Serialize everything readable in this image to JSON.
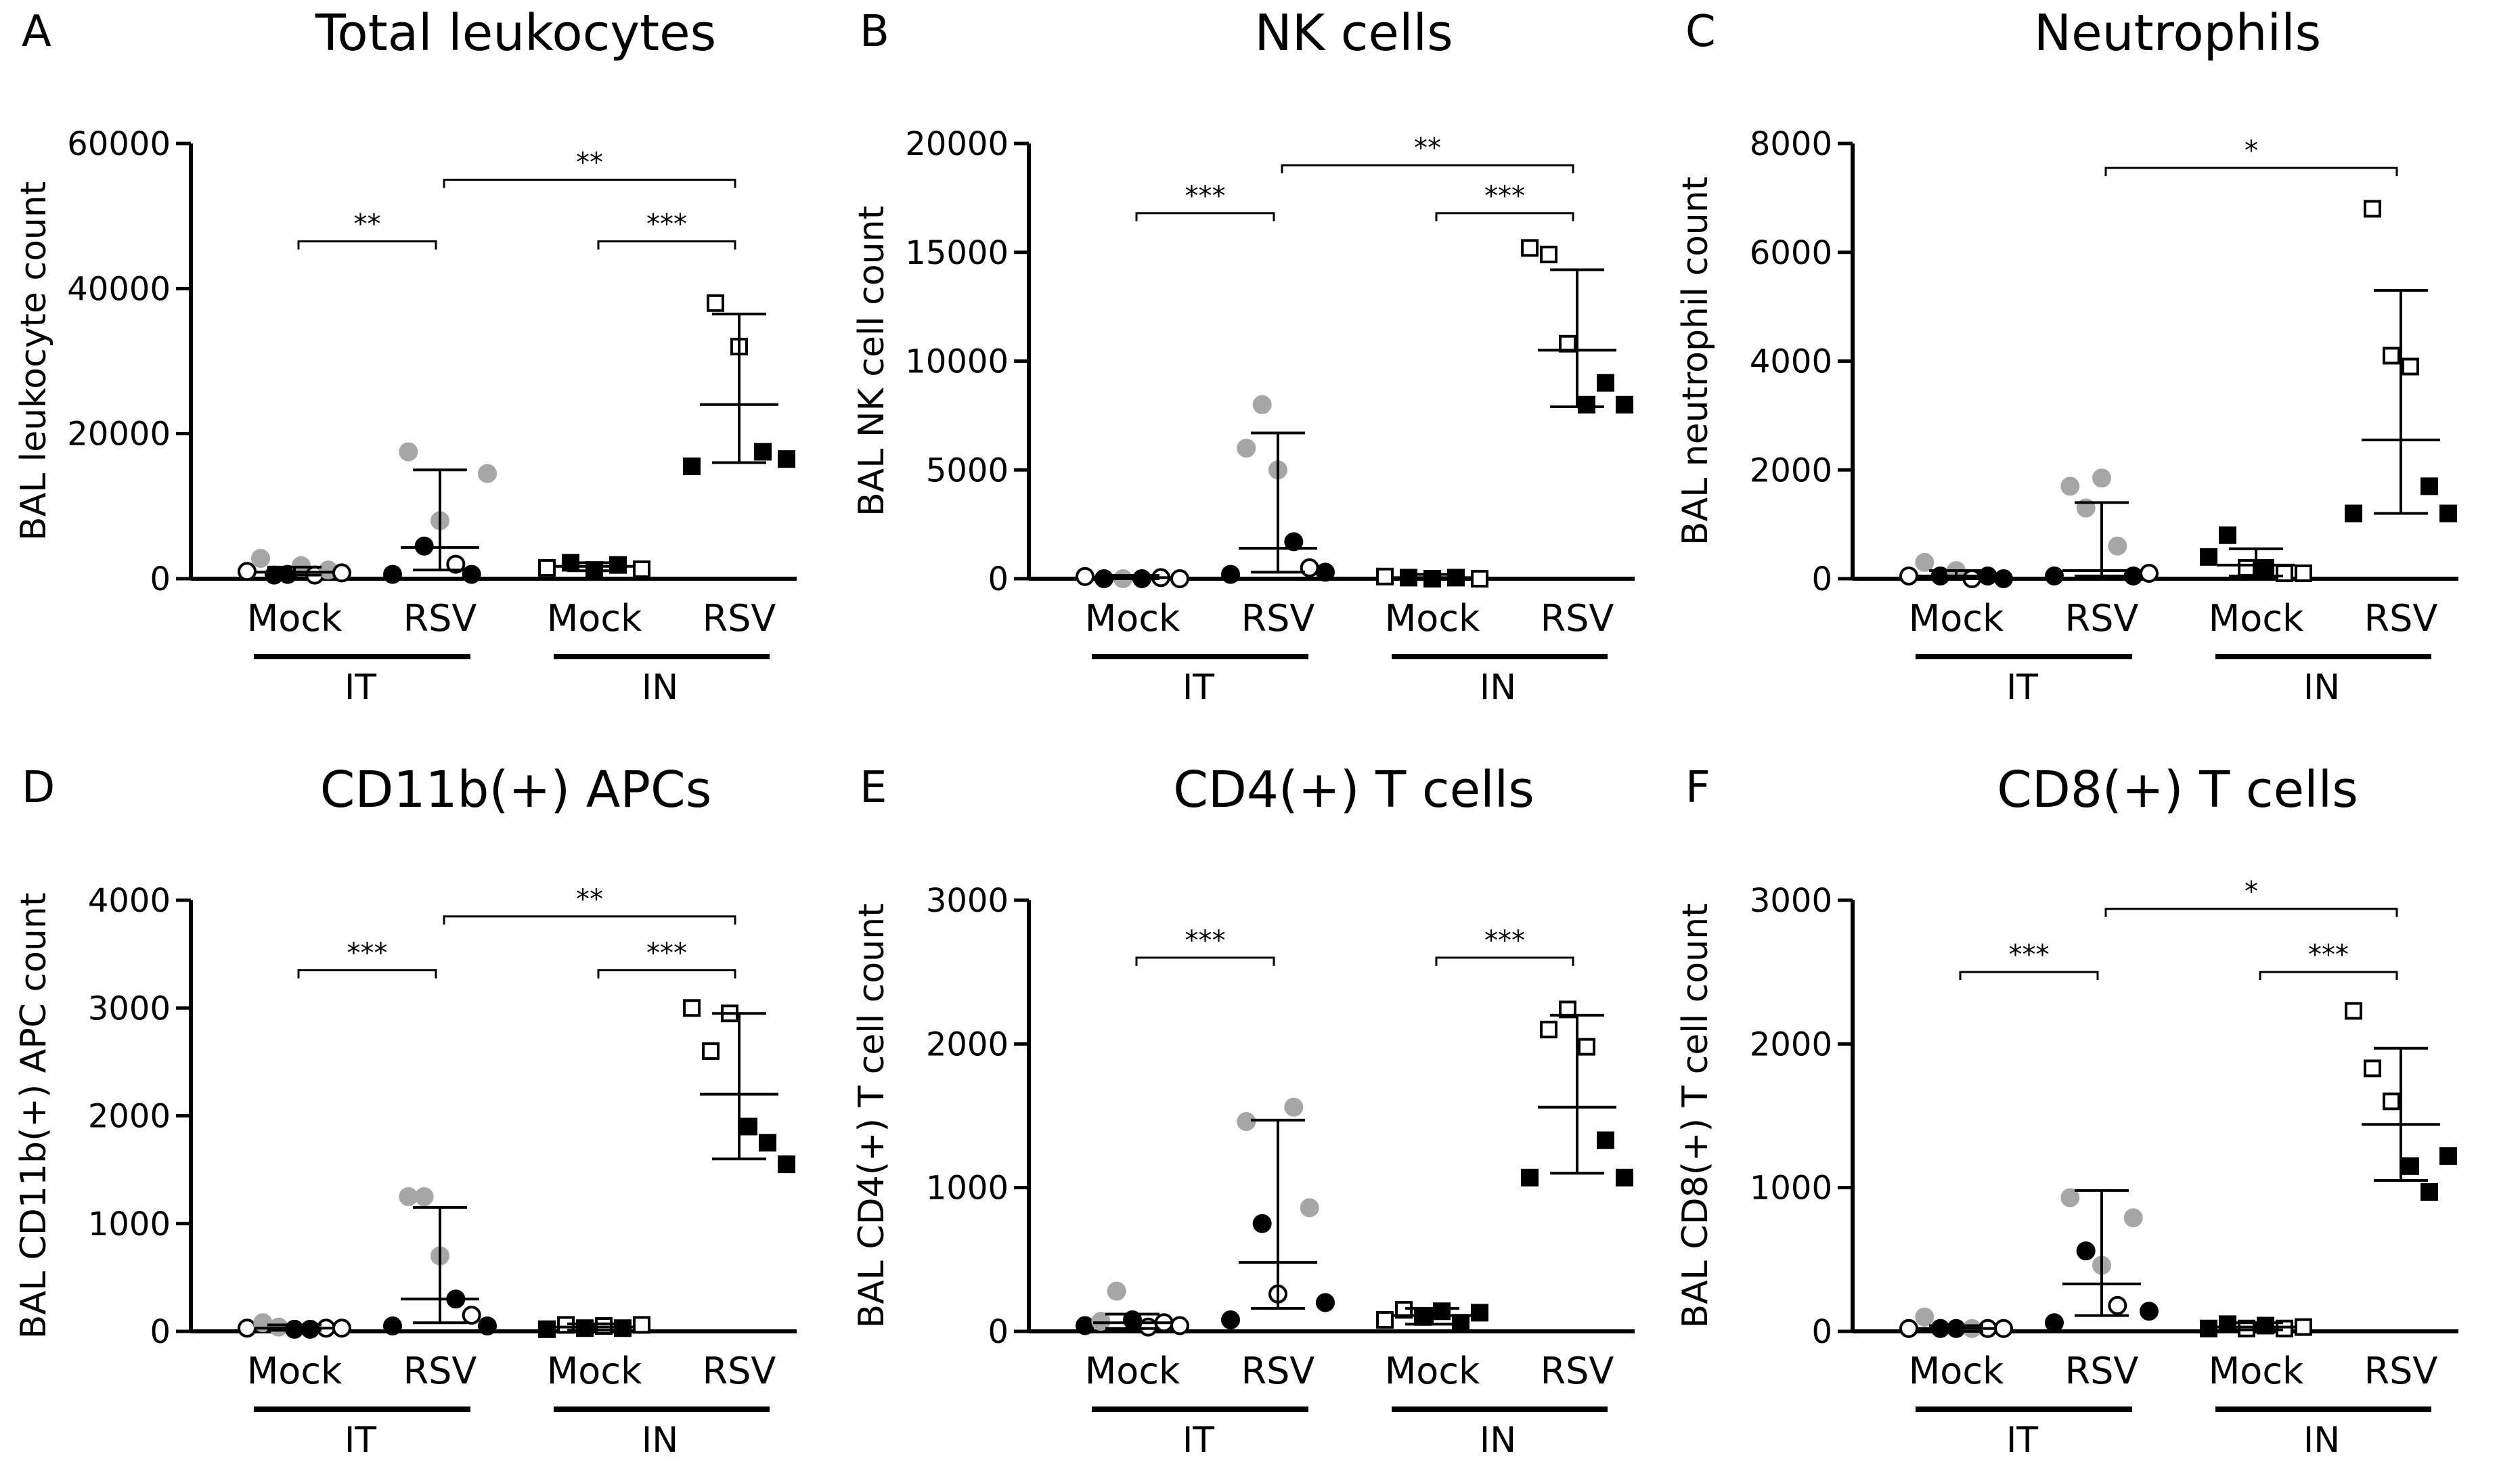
{
  "figure": {
    "x_categories": [
      "Mock",
      "RSV",
      "Mock",
      "RSV"
    ],
    "groups": [
      "IT",
      "IN"
    ]
  },
  "chart_data": [
    {
      "type": "scatter",
      "panel_label": "A",
      "title": "Total leukocytes",
      "ylabel": "BAL leukocyte count",
      "ylim": [
        0,
        60000
      ],
      "yticks": [
        "0",
        "20000",
        "40000",
        "60000"
      ],
      "groups": [
        {
          "name": "IT Mock",
          "points": [
            {
              "v": 1000,
              "s": "o"
            },
            {
              "v": 2800,
              "s": "g"
            },
            {
              "v": 500,
              "s": "f"
            },
            {
              "v": 600,
              "s": "f"
            },
            {
              "v": 1800,
              "s": "g"
            },
            {
              "v": 500,
              "s": "o"
            },
            {
              "v": 1200,
              "s": "g"
            },
            {
              "v": 800,
              "s": "o"
            }
          ],
          "median": 900,
          "lo": 500,
          "hi": 1600
        },
        {
          "name": "IT RSV",
          "points": [
            {
              "v": 600,
              "s": "f"
            },
            {
              "v": 17500,
              "s": "g"
            },
            {
              "v": 4500,
              "s": "f"
            },
            {
              "v": 8000,
              "s": "g"
            },
            {
              "v": 2000,
              "s": "o"
            },
            {
              "v": 600,
              "s": "f"
            },
            {
              "v": 14500,
              "s": "g"
            }
          ],
          "median": 4300,
          "lo": 1200,
          "hi": 15000
        },
        {
          "name": "IN Mock",
          "points": [
            {
              "v": 1500,
              "s": "os"
            },
            {
              "v": 2200,
              "s": "fs"
            },
            {
              "v": 1200,
              "s": "fs"
            },
            {
              "v": 1900,
              "s": "fs"
            },
            {
              "v": 1300,
              "s": "os"
            }
          ],
          "median": 1700,
          "lo": 1100,
          "hi": 2200
        },
        {
          "name": "IN RSV",
          "points": [
            {
              "v": 15500,
              "s": "fs"
            },
            {
              "v": 38000,
              "s": "os"
            },
            {
              "v": 32000,
              "s": "os"
            },
            {
              "v": 17500,
              "s": "fs"
            },
            {
              "v": 16500,
              "s": "fs"
            }
          ],
          "median": 24000,
          "lo": 16000,
          "hi": 36500
        }
      ],
      "significance": [
        {
          "from": 0,
          "to": 1,
          "label": "**",
          "y": 46500
        },
        {
          "from": 2,
          "to": 3,
          "label": "***",
          "y": 46500
        },
        {
          "from": 1,
          "to": 3,
          "label": "**",
          "y": 55000
        }
      ]
    },
    {
      "type": "scatter",
      "panel_label": "B",
      "title": "NK cells",
      "ylabel": "BAL NK cell count",
      "ylim": [
        0,
        20000
      ],
      "yticks": [
        "0",
        "5000",
        "10000",
        "15000",
        "20000"
      ],
      "groups": [
        {
          "name": "IT Mock",
          "points": [
            {
              "v": 100,
              "s": "o"
            },
            {
              "v": 0,
              "s": "f"
            },
            {
              "v": 0,
              "s": "g"
            },
            {
              "v": 0,
              "s": "f"
            },
            {
              "v": 50,
              "s": "o"
            },
            {
              "v": 0,
              "s": "o"
            }
          ],
          "median": 50,
          "lo": 0,
          "hi": 150
        },
        {
          "name": "IT RSV",
          "points": [
            {
              "v": 200,
              "s": "f"
            },
            {
              "v": 6000,
              "s": "g"
            },
            {
              "v": 8000,
              "s": "g"
            },
            {
              "v": 5000,
              "s": "g"
            },
            {
              "v": 1700,
              "s": "f"
            },
            {
              "v": 500,
              "s": "o"
            },
            {
              "v": 300,
              "s": "f"
            }
          ],
          "median": 1400,
          "lo": 300,
          "hi": 6700
        },
        {
          "name": "IN Mock",
          "points": [
            {
              "v": 100,
              "s": "os"
            },
            {
              "v": 50,
              "s": "fs"
            },
            {
              "v": 0,
              "s": "fs"
            },
            {
              "v": 50,
              "s": "fs"
            },
            {
              "v": 0,
              "s": "os"
            }
          ],
          "median": 50,
          "lo": 0,
          "hi": 200
        },
        {
          "name": "IN RSV",
          "points": [
            {
              "v": 15200,
              "s": "os"
            },
            {
              "v": 14900,
              "s": "os"
            },
            {
              "v": 10800,
              "s": "os"
            },
            {
              "v": 8000,
              "s": "fs"
            },
            {
              "v": 9000,
              "s": "fs"
            },
            {
              "v": 8000,
              "s": "fs"
            }
          ],
          "median": 10500,
          "lo": 7900,
          "hi": 14200
        }
      ],
      "significance": [
        {
          "from": 0,
          "to": 1,
          "label": "***",
          "y": 16800
        },
        {
          "from": 2,
          "to": 3,
          "label": "***",
          "y": 16800
        },
        {
          "from": 1,
          "to": 3,
          "label": "**",
          "y": 19000
        }
      ]
    },
    {
      "type": "scatter",
      "panel_label": "C",
      "title": "Neutrophils",
      "ylabel": "BAL neutrophil count",
      "ylim": [
        0,
        8000
      ],
      "yticks": [
        "0",
        "2000",
        "4000",
        "6000",
        "8000"
      ],
      "groups": [
        {
          "name": "IT Mock",
          "points": [
            {
              "v": 50,
              "s": "o"
            },
            {
              "v": 300,
              "s": "g"
            },
            {
              "v": 50,
              "s": "f"
            },
            {
              "v": 150,
              "s": "g"
            },
            {
              "v": 0,
              "s": "o"
            },
            {
              "v": 50,
              "s": "f"
            },
            {
              "v": 0,
              "s": "f"
            }
          ],
          "median": 50,
          "lo": 0,
          "hi": 150
        },
        {
          "name": "IT RSV",
          "points": [
            {
              "v": 50,
              "s": "f"
            },
            {
              "v": 1700,
              "s": "g"
            },
            {
              "v": 1300,
              "s": "g"
            },
            {
              "v": 1850,
              "s": "g"
            },
            {
              "v": 600,
              "s": "g"
            },
            {
              "v": 50,
              "s": "f"
            },
            {
              "v": 100,
              "s": "o"
            }
          ],
          "median": 150,
          "lo": 50,
          "hi": 1400
        },
        {
          "name": "IN Mock",
          "points": [
            {
              "v": 400,
              "s": "fs"
            },
            {
              "v": 800,
              "s": "fs"
            },
            {
              "v": 200,
              "s": "os"
            },
            {
              "v": 200,
              "s": "fs"
            },
            {
              "v": 100,
              "s": "os"
            },
            {
              "v": 100,
              "s": "os"
            }
          ],
          "median": 250,
          "lo": 50,
          "hi": 550
        },
        {
          "name": "IN RSV",
          "points": [
            {
              "v": 1200,
              "s": "fs"
            },
            {
              "v": 6800,
              "s": "os"
            },
            {
              "v": 4100,
              "s": "os"
            },
            {
              "v": 3900,
              "s": "os"
            },
            {
              "v": 1700,
              "s": "fs"
            },
            {
              "v": 1200,
              "s": "fs"
            }
          ],
          "median": 2550,
          "lo": 1200,
          "hi": 5300
        }
      ],
      "significance": [
        {
          "from": 1,
          "to": 3,
          "label": "*",
          "y": 7550
        }
      ]
    },
    {
      "type": "scatter",
      "panel_label": "D",
      "title": "CD11b(+) APCs",
      "ylabel": "BAL CD11b(+) APC count",
      "ylim": [
        0,
        4000
      ],
      "yticks": [
        "0",
        "1000",
        "2000",
        "3000",
        "4000"
      ],
      "groups": [
        {
          "name": "IT Mock",
          "points": [
            {
              "v": 30,
              "s": "o"
            },
            {
              "v": 80,
              "s": "g"
            },
            {
              "v": 40,
              "s": "g"
            },
            {
              "v": 20,
              "s": "f"
            },
            {
              "v": 20,
              "s": "f"
            },
            {
              "v": 30,
              "s": "o"
            },
            {
              "v": 30,
              "s": "o"
            }
          ],
          "median": 30,
          "lo": 10,
          "hi": 60
        },
        {
          "name": "IT RSV",
          "points": [
            {
              "v": 50,
              "s": "f"
            },
            {
              "v": 1250,
              "s": "g"
            },
            {
              "v": 1250,
              "s": "g"
            },
            {
              "v": 700,
              "s": "g"
            },
            {
              "v": 300,
              "s": "f"
            },
            {
              "v": 150,
              "s": "o"
            },
            {
              "v": 50,
              "s": "f"
            }
          ],
          "median": 300,
          "lo": 80,
          "hi": 1150
        },
        {
          "name": "IN Mock",
          "points": [
            {
              "v": 20,
              "s": "fs"
            },
            {
              "v": 60,
              "s": "os"
            },
            {
              "v": 30,
              "s": "fs"
            },
            {
              "v": 50,
              "s": "os"
            },
            {
              "v": 30,
              "s": "fs"
            },
            {
              "v": 60,
              "s": "os"
            }
          ],
          "median": 40,
          "lo": 10,
          "hi": 70
        },
        {
          "name": "IN RSV",
          "points": [
            {
              "v": 3000,
              "s": "os"
            },
            {
              "v": 2600,
              "s": "os"
            },
            {
              "v": 2950,
              "s": "os"
            },
            {
              "v": 1900,
              "s": "fs"
            },
            {
              "v": 1750,
              "s": "fs"
            },
            {
              "v": 1550,
              "s": "fs"
            }
          ],
          "median": 2200,
          "lo": 1600,
          "hi": 2950
        }
      ],
      "significance": [
        {
          "from": 0,
          "to": 1,
          "label": "***",
          "y": 3350
        },
        {
          "from": 2,
          "to": 3,
          "label": "***",
          "y": 3350
        },
        {
          "from": 1,
          "to": 3,
          "label": "**",
          "y": 3850
        }
      ]
    },
    {
      "type": "scatter",
      "panel_label": "E",
      "title": "CD4(+) T cells",
      "ylabel": "BAL CD4(+) T cell count",
      "ylim": [
        0,
        3000
      ],
      "yticks": [
        "0",
        "1000",
        "2000",
        "3000"
      ],
      "groups": [
        {
          "name": "IT Mock",
          "points": [
            {
              "v": 40,
              "s": "f"
            },
            {
              "v": 70,
              "s": "g"
            },
            {
              "v": 280,
              "s": "g"
            },
            {
              "v": 80,
              "s": "f"
            },
            {
              "v": 30,
              "s": "o"
            },
            {
              "v": 60,
              "s": "o"
            },
            {
              "v": 40,
              "s": "o"
            }
          ],
          "median": 60,
          "lo": 20,
          "hi": 120
        },
        {
          "name": "IT RSV",
          "points": [
            {
              "v": 80,
              "s": "f"
            },
            {
              "v": 1460,
              "s": "g"
            },
            {
              "v": 750,
              "s": "f"
            },
            {
              "v": 260,
              "s": "o"
            },
            {
              "v": 1560,
              "s": "g"
            },
            {
              "v": 860,
              "s": "g"
            },
            {
              "v": 200,
              "s": "f"
            }
          ],
          "median": 480,
          "lo": 160,
          "hi": 1470
        },
        {
          "name": "IN Mock",
          "points": [
            {
              "v": 80,
              "s": "os"
            },
            {
              "v": 150,
              "s": "os"
            },
            {
              "v": 100,
              "s": "fs"
            },
            {
              "v": 140,
              "s": "fs"
            },
            {
              "v": 60,
              "s": "fs"
            },
            {
              "v": 130,
              "s": "fs"
            }
          ],
          "median": 110,
          "lo": 50,
          "hi": 160
        },
        {
          "name": "IN RSV",
          "points": [
            {
              "v": 1070,
              "s": "fs"
            },
            {
              "v": 2100,
              "s": "os"
            },
            {
              "v": 2240,
              "s": "os"
            },
            {
              "v": 1980,
              "s": "os"
            },
            {
              "v": 1330,
              "s": "fs"
            },
            {
              "v": 1070,
              "s": "fs"
            }
          ],
          "median": 1560,
          "lo": 1100,
          "hi": 2200
        }
      ],
      "significance": [
        {
          "from": 0,
          "to": 1,
          "label": "***",
          "y": 2600
        },
        {
          "from": 2,
          "to": 3,
          "label": "***",
          "y": 2600
        }
      ]
    },
    {
      "type": "scatter",
      "panel_label": "F",
      "title": "CD8(+) T cells",
      "ylabel": "BAL CD8(+) T cell count",
      "ylim": [
        0,
        3000
      ],
      "yticks": [
        "0",
        "1000",
        "2000",
        "3000"
      ],
      "groups": [
        {
          "name": "IT Mock",
          "points": [
            {
              "v": 20,
              "s": "o"
            },
            {
              "v": 100,
              "s": "g"
            },
            {
              "v": 20,
              "s": "f"
            },
            {
              "v": 20,
              "s": "f"
            },
            {
              "v": 20,
              "s": "g"
            },
            {
              "v": 20,
              "s": "o"
            },
            {
              "v": 20,
              "s": "o"
            }
          ],
          "median": 20,
          "lo": 0,
          "hi": 40
        },
        {
          "name": "IT RSV",
          "points": [
            {
              "v": 60,
              "s": "f"
            },
            {
              "v": 930,
              "s": "g"
            },
            {
              "v": 560,
              "s": "f"
            },
            {
              "v": 460,
              "s": "g"
            },
            {
              "v": 180,
              "s": "o"
            },
            {
              "v": 790,
              "s": "g"
            },
            {
              "v": 140,
              "s": "f"
            }
          ],
          "median": 330,
          "lo": 110,
          "hi": 980
        },
        {
          "name": "IN Mock",
          "points": [
            {
              "v": 20,
              "s": "fs"
            },
            {
              "v": 50,
              "s": "fs"
            },
            {
              "v": 20,
              "s": "os"
            },
            {
              "v": 40,
              "s": "fs"
            },
            {
              "v": 20,
              "s": "os"
            },
            {
              "v": 30,
              "s": "os"
            }
          ],
          "median": 30,
          "lo": 10,
          "hi": 60
        },
        {
          "name": "IN RSV",
          "points": [
            {
              "v": 2230,
              "s": "os"
            },
            {
              "v": 1830,
              "s": "os"
            },
            {
              "v": 1600,
              "s": "os"
            },
            {
              "v": 1150,
              "s": "fs"
            },
            {
              "v": 970,
              "s": "fs"
            },
            {
              "v": 1220,
              "s": "fs"
            }
          ],
          "median": 1440,
          "lo": 1050,
          "hi": 1970
        }
      ],
      "significance": [
        {
          "from": 0,
          "to": 1,
          "label": "***",
          "y": 2500
        },
        {
          "from": 2,
          "to": 3,
          "label": "***",
          "y": 2500
        },
        {
          "from": 1,
          "to": 3,
          "label": "*",
          "y": 2940
        }
      ]
    }
  ]
}
